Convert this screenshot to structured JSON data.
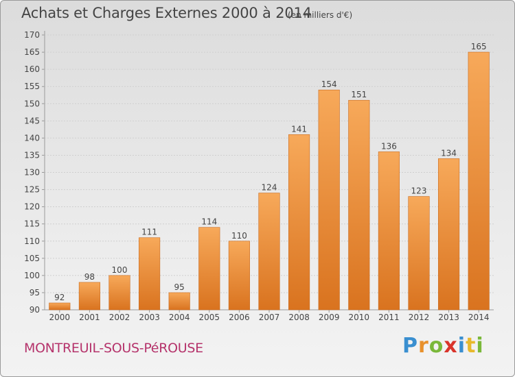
{
  "header": {
    "title": "Achats et Charges Externes 2000 à 2014",
    "unit": "(en milliers d'€)"
  },
  "footer": {
    "commune": "MONTREUIL-SOUS-PéROUSE",
    "brand": "Proxiti",
    "brand_letters": [
      {
        "ch": "P",
        "color": "#3a8fd0"
      },
      {
        "ch": "r",
        "color": "#e8912c"
      },
      {
        "ch": "o",
        "color": "#7ab83a"
      },
      {
        "ch": "x",
        "color": "#d9342b"
      },
      {
        "ch": "i",
        "color": "#3a8fd0"
      },
      {
        "ch": "t",
        "color": "#e8b92c"
      },
      {
        "ch": "i",
        "color": "#7ab83a"
      }
    ]
  },
  "chart_data": {
    "type": "bar",
    "title": "Achats et Charges Externes 2000 à 2014",
    "categories": [
      "2000",
      "2001",
      "2002",
      "2003",
      "2004",
      "2005",
      "2006",
      "2007",
      "2008",
      "2009",
      "2010",
      "2011",
      "2012",
      "2013",
      "2014"
    ],
    "values": [
      92,
      98,
      100,
      111,
      95,
      114,
      110,
      124,
      141,
      154,
      151,
      136,
      123,
      134,
      165
    ],
    "ylim": [
      90,
      170
    ],
    "yticks": [
      90,
      95,
      100,
      105,
      110,
      115,
      120,
      125,
      130,
      135,
      140,
      145,
      150,
      155,
      160,
      165,
      170
    ],
    "grid": true,
    "colors": {
      "bar_top": "#f7a95a",
      "bar_bottom": "#d9731f",
      "bar_edge": "#c86a1e"
    }
  }
}
